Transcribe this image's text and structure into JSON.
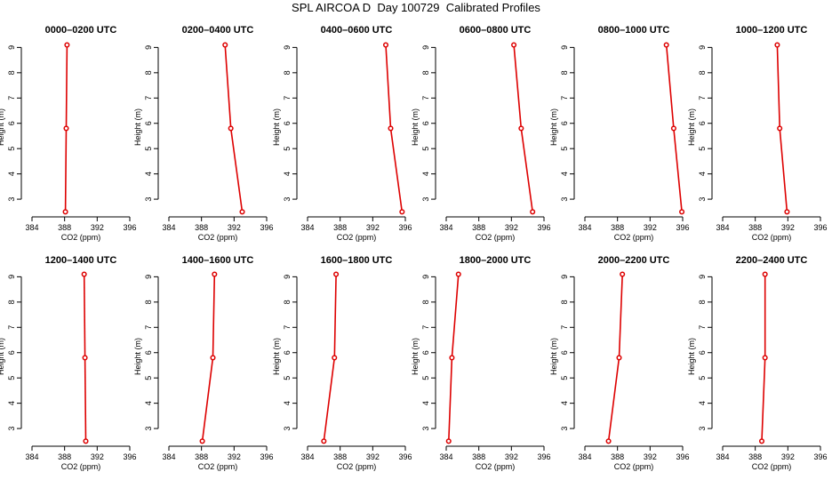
{
  "title": "SPL AIRCOA D  Day 100729  Calibrated Profiles",
  "colors": {
    "profile": "#dd0000",
    "axis": "#000000",
    "background": "#ffffff"
  },
  "chart_data": [
    {
      "type": "line",
      "title": "0000–0200 UTC",
      "xlabel": "CO2 (ppm)",
      "ylabel": "Height (m)",
      "xlim": [
        384,
        396
      ],
      "ylim": [
        2.3,
        9.4
      ],
      "xticks": [
        384,
        388,
        392,
        396
      ],
      "yticks": [
        3,
        4,
        5,
        6,
        7,
        8,
        9
      ],
      "series": [
        {
          "name": "profile",
          "x": [
            388.3,
            388.2,
            388.1
          ],
          "y": [
            9.1,
            5.8,
            2.5
          ]
        }
      ]
    },
    {
      "type": "line",
      "title": "0200–0400 UTC",
      "xlabel": "CO2 (ppm)",
      "ylabel": "Height (m)",
      "xlim": [
        384,
        396
      ],
      "ylim": [
        2.3,
        9.4
      ],
      "xticks": [
        384,
        388,
        392,
        396
      ],
      "yticks": [
        3,
        4,
        5,
        6,
        7,
        8,
        9
      ],
      "series": [
        {
          "name": "profile",
          "x": [
            390.9,
            391.6,
            393.0
          ],
          "y": [
            9.1,
            5.8,
            2.5
          ]
        }
      ]
    },
    {
      "type": "line",
      "title": "0400–0600 UTC",
      "xlabel": "CO2 (ppm)",
      "ylabel": "Height (m)",
      "xlim": [
        384,
        396
      ],
      "ylim": [
        2.3,
        9.4
      ],
      "xticks": [
        384,
        388,
        392,
        396
      ],
      "yticks": [
        3,
        4,
        5,
        6,
        7,
        8,
        9
      ],
      "series": [
        {
          "name": "profile",
          "x": [
            393.6,
            394.2,
            395.6
          ],
          "y": [
            9.1,
            5.8,
            2.5
          ]
        }
      ]
    },
    {
      "type": "line",
      "title": "0600–0800 UTC",
      "xlabel": "CO2 (ppm)",
      "ylabel": "Height (m)",
      "xlim": [
        384,
        396
      ],
      "ylim": [
        2.3,
        9.4
      ],
      "xticks": [
        384,
        388,
        392,
        396
      ],
      "yticks": [
        3,
        4,
        5,
        6,
        7,
        8,
        9
      ],
      "series": [
        {
          "name": "profile",
          "x": [
            392.3,
            393.2,
            394.6
          ],
          "y": [
            9.1,
            5.8,
            2.5
          ]
        }
      ]
    },
    {
      "type": "line",
      "title": "0800–1000 UTC",
      "xlabel": "CO2 (ppm)",
      "ylabel": "Height (m)",
      "xlim": [
        384,
        396
      ],
      "ylim": [
        2.3,
        9.4
      ],
      "xticks": [
        384,
        388,
        392,
        396
      ],
      "yticks": [
        3,
        4,
        5,
        6,
        7,
        8,
        9
      ],
      "series": [
        {
          "name": "profile",
          "x": [
            394.0,
            394.9,
            395.9
          ],
          "y": [
            9.1,
            5.8,
            2.5
          ]
        }
      ]
    },
    {
      "type": "line",
      "title": "1000–1200 UTC",
      "xlabel": "CO2 (ppm)",
      "ylabel": "Height (m)",
      "xlim": [
        384,
        396
      ],
      "ylim": [
        2.3,
        9.4
      ],
      "xticks": [
        384,
        388,
        392,
        396
      ],
      "yticks": [
        3,
        4,
        5,
        6,
        7,
        8,
        9
      ],
      "series": [
        {
          "name": "profile",
          "x": [
            390.7,
            391.0,
            391.9
          ],
          "y": [
            9.1,
            5.8,
            2.5
          ]
        }
      ]
    },
    {
      "type": "line",
      "title": "1200–1400 UTC",
      "xlabel": "CO2 (ppm)",
      "ylabel": "Height (m)",
      "xlim": [
        384,
        396
      ],
      "ylim": [
        2.3,
        9.4
      ],
      "xticks": [
        384,
        388,
        392,
        396
      ],
      "yticks": [
        3,
        4,
        5,
        6,
        7,
        8,
        9
      ],
      "series": [
        {
          "name": "profile",
          "x": [
            390.4,
            390.5,
            390.6
          ],
          "y": [
            9.1,
            5.8,
            2.5
          ]
        }
      ]
    },
    {
      "type": "line",
      "title": "1400–1600 UTC",
      "xlabel": "CO2 (ppm)",
      "ylabel": "Height (m)",
      "xlim": [
        384,
        396
      ],
      "ylim": [
        2.3,
        9.4
      ],
      "xticks": [
        384,
        388,
        392,
        396
      ],
      "yticks": [
        3,
        4,
        5,
        6,
        7,
        8,
        9
      ],
      "series": [
        {
          "name": "profile",
          "x": [
            389.6,
            389.4,
            388.1
          ],
          "y": [
            9.1,
            5.8,
            2.5
          ]
        }
      ]
    },
    {
      "type": "line",
      "title": "1600–1800 UTC",
      "xlabel": "CO2 (ppm)",
      "ylabel": "Height (m)",
      "xlim": [
        384,
        396
      ],
      "ylim": [
        2.3,
        9.4
      ],
      "xticks": [
        384,
        388,
        392,
        396
      ],
      "yticks": [
        3,
        4,
        5,
        6,
        7,
        8,
        9
      ],
      "series": [
        {
          "name": "profile",
          "x": [
            387.5,
            387.3,
            386.0
          ],
          "y": [
            9.1,
            5.8,
            2.5
          ]
        }
      ]
    },
    {
      "type": "line",
      "title": "1800–2000 UTC",
      "xlabel": "CO2 (ppm)",
      "ylabel": "Height (m)",
      "xlim": [
        384,
        396
      ],
      "ylim": [
        2.3,
        9.4
      ],
      "xticks": [
        384,
        388,
        392,
        396
      ],
      "yticks": [
        3,
        4,
        5,
        6,
        7,
        8,
        9
      ],
      "series": [
        {
          "name": "profile",
          "x": [
            385.5,
            384.7,
            384.3
          ],
          "y": [
            9.1,
            5.8,
            2.5
          ]
        }
      ]
    },
    {
      "type": "line",
      "title": "2000–2200 UTC",
      "xlabel": "CO2 (ppm)",
      "ylabel": "Height (m)",
      "xlim": [
        384,
        396
      ],
      "ylim": [
        2.3,
        9.4
      ],
      "xticks": [
        384,
        388,
        392,
        396
      ],
      "yticks": [
        3,
        4,
        5,
        6,
        7,
        8,
        9
      ],
      "series": [
        {
          "name": "profile",
          "x": [
            388.6,
            388.2,
            386.9
          ],
          "y": [
            9.1,
            5.8,
            2.5
          ]
        }
      ]
    },
    {
      "type": "line",
      "title": "2200–2400 UTC",
      "xlabel": "CO2 (ppm)",
      "ylabel": "Height (m)",
      "xlim": [
        384,
        396
      ],
      "ylim": [
        2.3,
        9.4
      ],
      "xticks": [
        384,
        388,
        392,
        396
      ],
      "yticks": [
        3,
        4,
        5,
        6,
        7,
        8,
        9
      ],
      "series": [
        {
          "name": "profile",
          "x": [
            389.2,
            389.2,
            388.8
          ],
          "y": [
            9.1,
            5.8,
            2.5
          ]
        }
      ]
    }
  ]
}
